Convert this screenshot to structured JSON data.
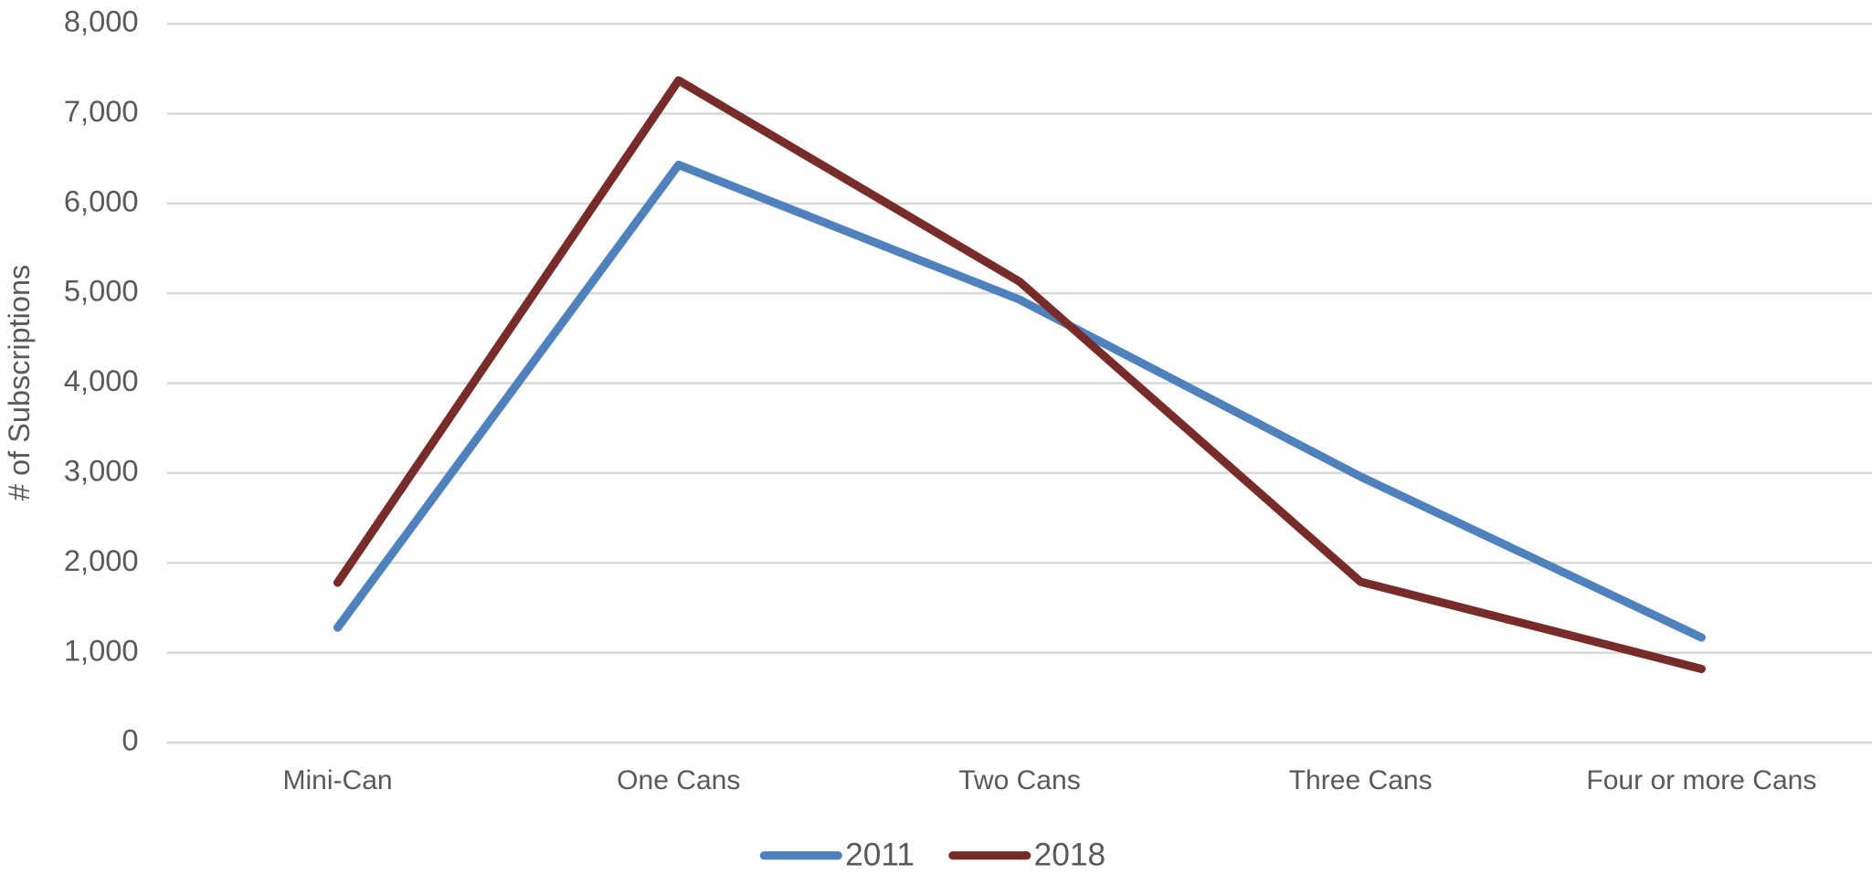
{
  "chart_data": {
    "type": "line",
    "y_label": "# of Subscriptions",
    "categories": [
      "Mini-Can",
      "One Cans",
      "Two Cans",
      "Three Cans",
      "Four or more Cans"
    ],
    "series": [
      {
        "name": "2011",
        "color": "#4f81bd",
        "values": [
          1280,
          6430,
          4930,
          2960,
          1170
        ]
      },
      {
        "name": "2018",
        "color": "#772c2a",
        "values": [
          1780,
          7370,
          5130,
          1790,
          820
        ]
      }
    ],
    "ylim": [
      0,
      8000
    ],
    "yticks": [
      0,
      {
        "value": 1000,
        "label": "1,000"
      },
      {
        "value": 2000,
        "label": "2,000"
      },
      {
        "value": 3000,
        "label": "3,000"
      },
      {
        "value": 4000,
        "label": "4,000"
      },
      {
        "value": 5000,
        "label": "5,000"
      },
      {
        "value": 6000,
        "label": "6,000"
      },
      {
        "value": 7000,
        "label": "7,000"
      },
      {
        "value": 8000,
        "label": "8,000"
      }
    ],
    "grid": true,
    "legend": "bottom"
  }
}
